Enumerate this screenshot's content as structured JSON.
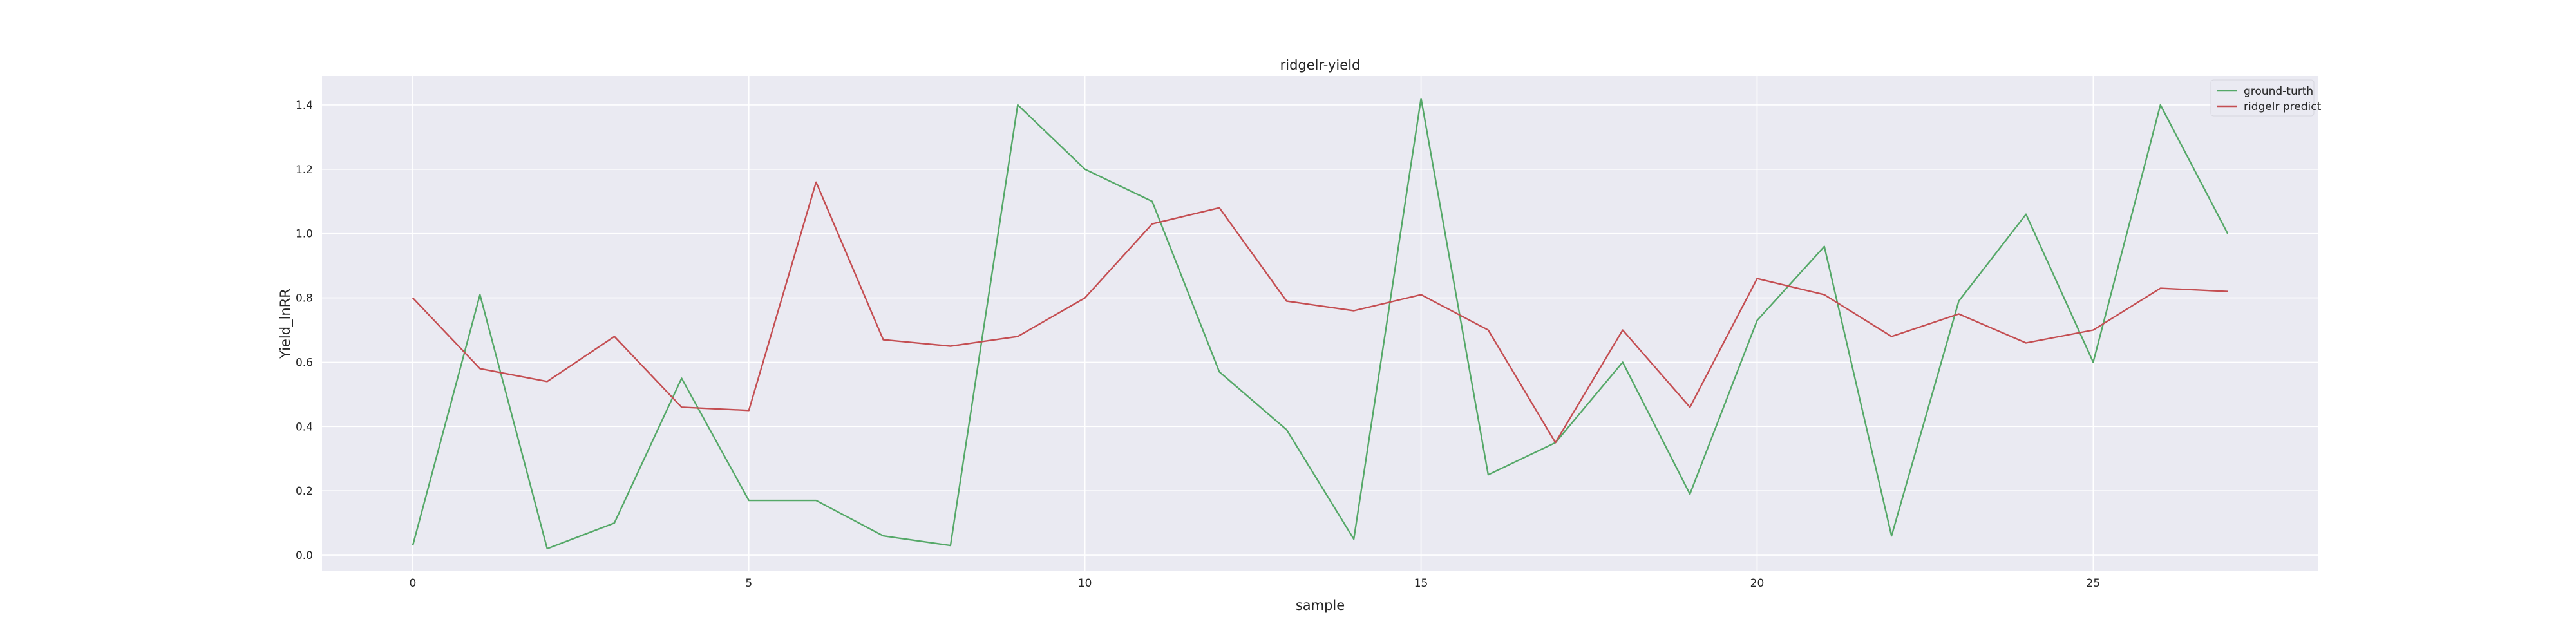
{
  "chart_data": {
    "type": "line",
    "title": "ridgelr-yield",
    "xlabel": "sample",
    "ylabel": "Yield_lnRR",
    "xlim": [
      -1.35,
      28.35
    ],
    "ylim": [
      -0.05,
      1.49
    ],
    "x_ticks": [
      0,
      5,
      10,
      15,
      20,
      25
    ],
    "y_ticks": [
      0.0,
      0.2,
      0.4,
      0.6,
      0.8,
      1.0,
      1.2,
      1.4
    ],
    "y_tick_labels": [
      "0.0",
      "0.2",
      "0.4",
      "0.6",
      "0.8",
      "1.0",
      "1.2",
      "1.4"
    ],
    "grid": true,
    "legend_position": "top-right",
    "x": [
      0,
      1,
      2,
      3,
      4,
      5,
      6,
      7,
      8,
      9,
      10,
      11,
      12,
      13,
      14,
      15,
      16,
      17,
      18,
      19,
      20,
      21,
      22,
      23,
      24,
      25,
      26,
      27
    ],
    "series": [
      {
        "name": "ground-turth",
        "color": "#55a868",
        "values": [
          0.03,
          0.81,
          0.02,
          0.1,
          0.55,
          0.17,
          0.17,
          0.06,
          0.03,
          1.4,
          1.2,
          1.1,
          0.57,
          0.39,
          0.05,
          1.42,
          0.25,
          0.35,
          0.6,
          0.19,
          0.73,
          0.96,
          0.06,
          0.79,
          1.06,
          0.6,
          1.4,
          1.0
        ]
      },
      {
        "name": "ridgelr predict",
        "color": "#c44e52",
        "values": [
          0.8,
          0.58,
          0.54,
          0.68,
          0.46,
          0.45,
          1.16,
          0.67,
          0.65,
          0.68,
          0.8,
          1.03,
          1.08,
          0.79,
          0.76,
          0.81,
          0.7,
          0.35,
          0.7,
          0.46,
          0.86,
          0.81,
          0.68,
          0.75,
          0.66,
          0.7,
          0.83,
          0.82
        ]
      }
    ],
    "style": {
      "background": "#eaeaf2",
      "grid_color": "#ffffff"
    }
  }
}
